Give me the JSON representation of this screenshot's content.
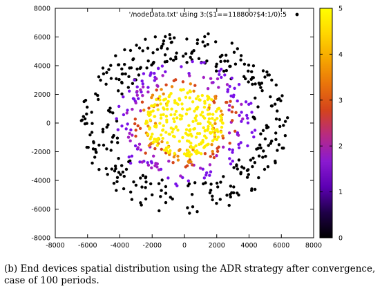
{
  "figure": {
    "caption": "(b) End devices spatial distribution using the ADR strategy after convergence, case of 100 periods."
  },
  "chart_data": {
    "type": "scatter",
    "title": "",
    "xlabel": "",
    "ylabel": "",
    "legend": "'/nodeData.txt' using  3:($1==118800?$4:1/0):5",
    "legend_placement": "top-right",
    "grid": false,
    "xlim": [
      -8000,
      8000
    ],
    "ylim": [
      -8000,
      8000
    ],
    "x_ticks": [
      "-8000",
      "-6000",
      "-4000",
      "-2000",
      "0",
      "2000",
      "4000",
      "6000",
      "8000"
    ],
    "y_ticks": [
      "-8000",
      "-6000",
      "-4000",
      "-2000",
      "0",
      "2000",
      "4000",
      "6000",
      "8000"
    ],
    "colorbar": {
      "min": 0,
      "max": 5,
      "ticks": [
        "0",
        "1",
        "2",
        "3",
        "4",
        "5"
      ],
      "palette": [
        "#000000",
        "#1f0049",
        "#5d00b4",
        "#8a1ad0",
        "#b72a84",
        "#d4431c",
        "#e9730b",
        "#f6a600",
        "#ffd600",
        "#ffff00"
      ]
    },
    "rings": [
      {
        "value": 0,
        "r_min": 4100,
        "r_max": 6400,
        "count": 330,
        "color": "#000000"
      },
      {
        "value": 1,
        "r_min": 3300,
        "r_max": 4400,
        "count": 100,
        "color": "#7a12e8"
      },
      {
        "value": 2,
        "r_min": 2700,
        "r_max": 3800,
        "count": 55,
        "color": "#a21ec4"
      },
      {
        "value": 3,
        "r_min": 2300,
        "r_max": 3300,
        "count": 45,
        "color": "#d5451a"
      },
      {
        "value": 4,
        "r_min": 1700,
        "r_max": 2800,
        "count": 55,
        "color": "#ec8a0a"
      },
      {
        "value": 5,
        "r_min": 0,
        "r_max": 2400,
        "count": 230,
        "color": "#ffee00"
      }
    ]
  }
}
